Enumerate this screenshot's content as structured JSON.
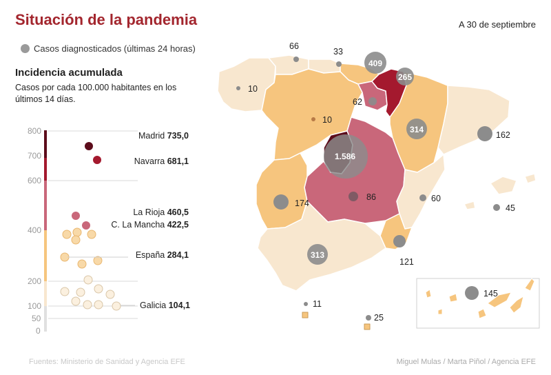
{
  "title": "Situación de la pandemia",
  "date": "A 30 de septiembre",
  "legend": {
    "label": "Casos diagnosticados (últimas 24 horas)"
  },
  "incidence": {
    "heading": "Incidencia acumulada",
    "subtitle": "Casos por cada 100.000 habitantes en los últimos 14 días.",
    "axis_ticks": [
      "800",
      "700",
      "600",
      "400",
      "200",
      "100",
      "50",
      "0"
    ],
    "labels": [
      {
        "name": "Madrid",
        "value": "735,0"
      },
      {
        "name": "Navarra",
        "value": "681,1"
      },
      {
        "name": "La Rioja",
        "value": "460,5"
      },
      {
        "name": "C. La Mancha",
        "value": "422,5"
      },
      {
        "name": "España",
        "value": "284,1"
      },
      {
        "name": "Galicia",
        "value": "104,1"
      }
    ]
  },
  "colors": {
    "scale": [
      "#f8e7cf",
      "#f6c57e",
      "#c9677a",
      "#a4192e",
      "#5c0c1b"
    ],
    "case_bubble": "#8c8c8c",
    "title": "#a3262e"
  },
  "map_cases": {
    "galicia": "10",
    "asturias": "66",
    "cantabria": "33",
    "pais_vasco": "409",
    "navarra": "265",
    "la_rioja": "62",
    "castilla_leon": "10",
    "aragon": "314",
    "cataluna": "162",
    "madrid": "1.586",
    "castilla_la_mancha": "86",
    "extremadura": "174",
    "valencia": "60",
    "baleares": "45",
    "andalucia": "313",
    "murcia": "121",
    "ceuta": "11",
    "melilla": "25",
    "canarias": "145"
  },
  "footer": {
    "sources": "Fuentes: Ministerio de Sanidad y Agencia EFE",
    "credits": "Miguel Mulas / Marta Piñol / Agencia EFE"
  }
}
